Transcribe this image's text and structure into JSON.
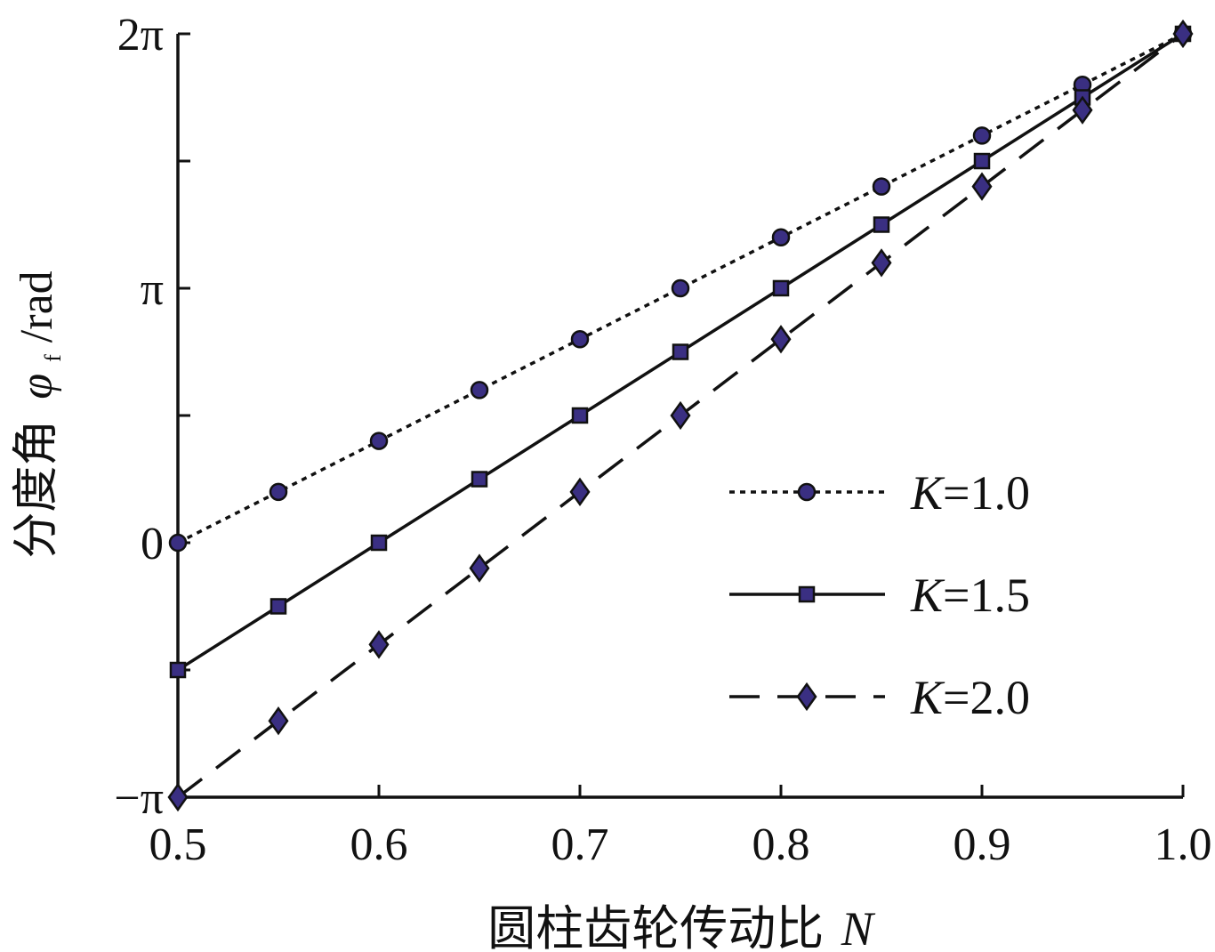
{
  "chart_data": {
    "type": "line",
    "xlabel_text": "圆柱齿轮传动比",
    "xlabel_var": "N",
    "ylabel_text": "分度角",
    "ylabel_var": "φ",
    "ylabel_sub": "f",
    "ylabel_unit": "/rad",
    "xlim": [
      0.5,
      1.0
    ],
    "ylim": [
      -3.14159,
      6.28319
    ],
    "x_ticks": [
      {
        "value": 0.5,
        "label": "0.5"
      },
      {
        "value": 0.6,
        "label": "0.6"
      },
      {
        "value": 0.7,
        "label": "0.7"
      },
      {
        "value": 0.8,
        "label": "0.8"
      },
      {
        "value": 0.9,
        "label": "0.9"
      },
      {
        "value": 1.0,
        "label": "1.0"
      }
    ],
    "y_ticks": [
      {
        "value": -3.14159,
        "label": "−π"
      },
      {
        "value": -1.5708,
        "label": ""
      },
      {
        "value": 0,
        "label": "0"
      },
      {
        "value": 1.5708,
        "label": ""
      },
      {
        "value": 3.14159,
        "label": "π"
      },
      {
        "value": 4.71239,
        "label": ""
      },
      {
        "value": 6.28319,
        "label": "2π"
      }
    ],
    "x": [
      0.5,
      0.55,
      0.6,
      0.65,
      0.7,
      0.75,
      0.8,
      0.85,
      0.9,
      0.95,
      1.0
    ],
    "series": [
      {
        "name": "K=1.0",
        "var": "K",
        "eq": "=1.0",
        "line": "dotted",
        "marker": "circle",
        "values": [
          0.0,
          0.628,
          1.257,
          1.885,
          2.513,
          3.142,
          3.77,
          4.398,
          5.027,
          5.655,
          6.283
        ]
      },
      {
        "name": "K=1.5",
        "var": "K",
        "eq": "=1.5",
        "line": "solid",
        "marker": "square",
        "values": [
          -1.571,
          -0.785,
          0.0,
          0.785,
          1.571,
          2.356,
          3.142,
          3.927,
          4.712,
          5.498,
          6.283
        ]
      },
      {
        "name": "K=2.0",
        "var": "K",
        "eq": "=2.0",
        "line": "dashed",
        "marker": "diamond",
        "values": [
          -3.142,
          -2.199,
          -1.257,
          -0.314,
          0.628,
          1.571,
          2.513,
          3.456,
          4.398,
          5.341,
          6.283
        ]
      }
    ],
    "marker_fill": "#3a2f82",
    "line_color": "#111111",
    "grid": false,
    "legend_position": "center-right"
  }
}
